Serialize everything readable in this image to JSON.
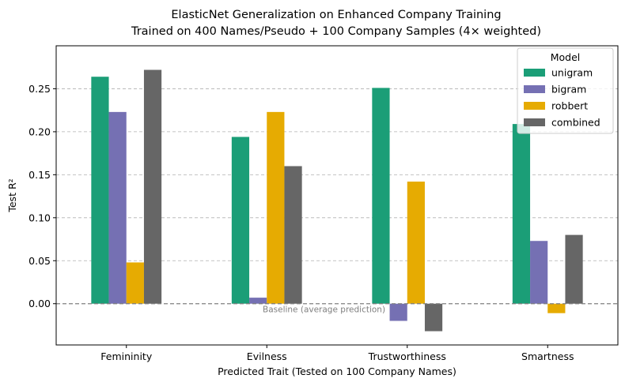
{
  "chart_data": {
    "type": "bar",
    "title": [
      "ElasticNet Generalization on Enhanced Company Training",
      "Trained on 400 Names/Pseudo + 100 Company Samples (4× weighted)"
    ],
    "xlabel": "Predicted Trait (Tested on 100 Company Names)",
    "ylabel": "Test R²",
    "categories": [
      "Femininity",
      "Evilness",
      "Trustworthiness",
      "Smartness"
    ],
    "series": [
      {
        "name": "unigram",
        "color": "#1b9e77",
        "values": [
          0.264,
          0.194,
          0.251,
          0.209
        ]
      },
      {
        "name": "bigram",
        "color": "#7570b3",
        "values": [
          0.223,
          0.007,
          -0.02,
          0.073
        ]
      },
      {
        "name": "robbert",
        "color": "#e6ab02",
        "values": [
          0.048,
          0.223,
          0.142,
          -0.011
        ]
      },
      {
        "name": "combined",
        "color": "#666666",
        "values": [
          0.272,
          0.16,
          -0.032,
          0.08
        ]
      }
    ],
    "ylim": [
      -0.048,
      0.3
    ],
    "yticks": [
      0.0,
      0.05,
      0.1,
      0.15,
      0.2,
      0.25
    ],
    "ytick_labels": [
      "0.00",
      "0.05",
      "0.10",
      "0.15",
      "0.20",
      "0.25"
    ],
    "grid": {
      "y": true,
      "x": false,
      "style": "dashed"
    },
    "legend": {
      "title": "Model",
      "placement": "top-right"
    },
    "baseline": {
      "value": 0.0,
      "label": "Baseline (average prediction)",
      "color": "#808080",
      "style": "dashed"
    }
  }
}
